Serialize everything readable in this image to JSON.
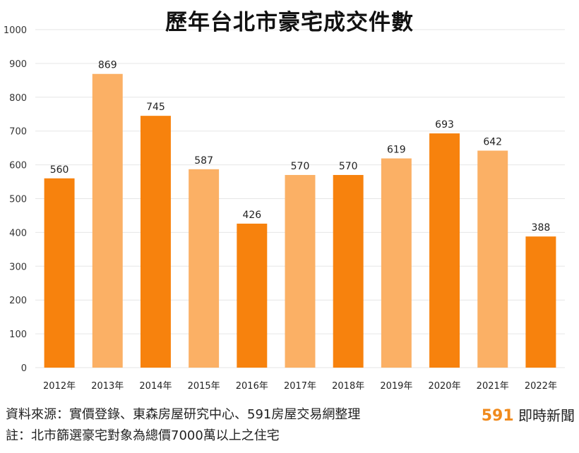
{
  "colors": {
    "dark_orange": "#f7820d",
    "light_orange": "#fbb065",
    "highlight_label": "#a31c1c",
    "brand_accent": "#f08a1c"
  },
  "footer": {
    "source": "資料來源：實價登錄、東森房屋研究中心、591房屋交易網整理",
    "note": "註：北市篩選豪宅對象為總價7000萬以上之住宅"
  },
  "brand": {
    "number": "591",
    "text": "即時新聞"
  },
  "chart_data": {
    "type": "bar",
    "title": "歷年台北市豪宅成交件數",
    "xlabel": "",
    "ylabel": "",
    "ylim": [
      0,
      1000
    ],
    "yticks": [
      0,
      100,
      200,
      300,
      400,
      500,
      600,
      700,
      800,
      900,
      1000
    ],
    "grid": true,
    "categories": [
      "2012年",
      "2013年",
      "2014年",
      "2015年",
      "2016年",
      "2017年",
      "2018年",
      "2019年",
      "2020年",
      "2021年",
      "2022年"
    ],
    "values": [
      560,
      869,
      745,
      587,
      426,
      570,
      570,
      619,
      693,
      642,
      388
    ],
    "bar_colors": [
      "dark_orange",
      "light_orange",
      "dark_orange",
      "light_orange",
      "dark_orange",
      "light_orange",
      "dark_orange",
      "light_orange",
      "dark_orange",
      "light_orange",
      "dark_orange"
    ],
    "label_colors": [
      "default",
      "default",
      "default",
      "default",
      "default",
      "default",
      "default",
      "default",
      "default",
      "default",
      "highlight_label"
    ]
  }
}
